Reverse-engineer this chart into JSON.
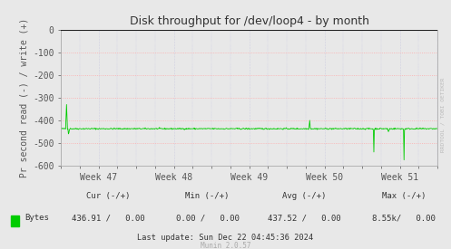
{
  "title": "Disk throughput for /dev/loop4 - by month",
  "ylabel": "Pr second read (-) / write (+)",
  "xlabel_ticks": [
    "Week 47",
    "Week 48",
    "Week 49",
    "Week 50",
    "Week 51"
  ],
  "ylim": [
    -600,
    0
  ],
  "yticks": [
    0,
    -100,
    -200,
    -300,
    -400,
    -500,
    -600
  ],
  "bg_color": "#e8e8e8",
  "plot_bg_color": "#e8e8e8",
  "grid_color_h": "#ffaaaa",
  "grid_color_v": "#bbbbdd",
  "line_color": "#00cc00",
  "legend_label": "Bytes",
  "legend_color": "#00cc00",
  "cur_label": "Cur (-/+)",
  "min_label": "Min (-/+)",
  "avg_label": "Avg (-/+)",
  "max_label": "Max (-/+)",
  "cur_val": "436.91 /   0.00",
  "min_val": "0.00 /   0.00",
  "avg_val": "437.52 /   0.00",
  "max_val": "8.55k/   0.00",
  "last_update": "Last update: Sun Dec 22 04:45:36 2024",
  "munin_label": "Munin 2.0.57",
  "rrdtool_label": "RRDTOOL / TOBI OETIKER",
  "title_color": "#333333",
  "tick_color": "#555555"
}
